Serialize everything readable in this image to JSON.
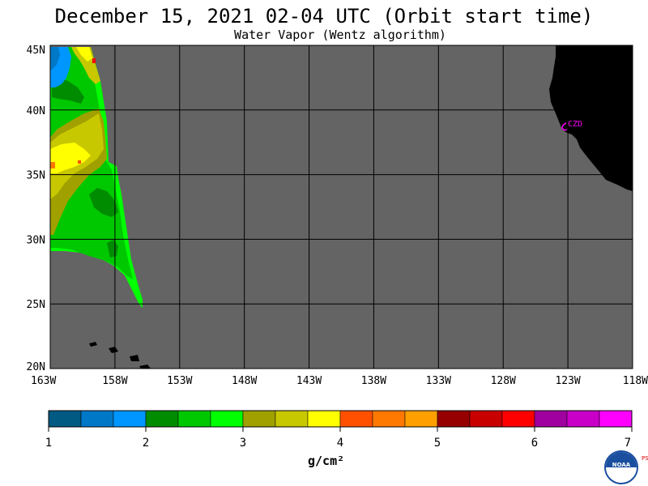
{
  "header": {
    "title": "December 15, 2021  02-04 UTC  (Orbit start time)",
    "subtitle": "Water Vapor (Wentz algorithm)"
  },
  "map": {
    "lat_labels": [
      "45N",
      "40N",
      "35N",
      "30N",
      "25N",
      "20N"
    ],
    "lat_values": [
      45,
      40,
      35,
      30,
      25,
      20
    ],
    "lon_labels": [
      "163W",
      "158W",
      "153W",
      "148W",
      "143W",
      "138W",
      "133W",
      "128W",
      "123W",
      "118W"
    ],
    "lon_values": [
      -163,
      -158,
      -153,
      -148,
      -143,
      -138,
      -133,
      -128,
      -123,
      -118
    ],
    "lat_range": [
      20,
      45
    ],
    "lon_range": [
      -163,
      -118
    ],
    "station_label": "CZD",
    "background_color": "#646464",
    "land_color": "#000000",
    "station_color": "#ff00ff"
  },
  "colorbar": {
    "tick_labels": [
      "1",
      "2",
      "3",
      "4",
      "5",
      "6",
      "7"
    ],
    "units": "g/cm²",
    "colors": [
      "#005a82",
      "#0078c8",
      "#0096ff",
      "#008c00",
      "#00c800",
      "#00ff00",
      "#a0a000",
      "#c8c800",
      "#ffff00",
      "#ff5000",
      "#ff7800",
      "#ffa000",
      "#960000",
      "#c80000",
      "#ff0000",
      "#a000a0",
      "#c800c8",
      "#ff00ff"
    ]
  },
  "logo": {
    "text": "NOAA",
    "side_text": "PSL"
  }
}
